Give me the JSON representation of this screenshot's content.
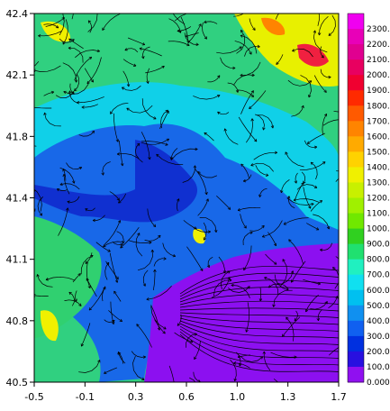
{
  "x_ticks": [
    "-0.5",
    "-0.1",
    "0.3",
    "0.6",
    "1.0",
    "1.3",
    "1.7"
  ],
  "y_ticks": [
    "42.4",
    "42.1",
    "41.8",
    "41.4",
    "41.1",
    "40.8",
    "40.5"
  ],
  "colorbar": {
    "labels": [
      "2300.",
      "2200.",
      "2100.",
      "2000.",
      "1900.",
      "1800.",
      "1700.",
      "1600.",
      "1500.",
      "1400.",
      "1300.",
      "1200.",
      "1100.",
      "1000.",
      "900.0",
      "800.0",
      "700.0",
      "600.0",
      "500.0",
      "400.0",
      "300.0",
      "200.0",
      "100.0",
      "0.000"
    ],
    "colors": [
      "#f000f0",
      "#e800b8",
      "#e00090",
      "#e80060",
      "#f00030",
      "#ff2a00",
      "#ff5a00",
      "#ff8400",
      "#ffaa00",
      "#ffd200",
      "#f0f000",
      "#c8f000",
      "#a0f000",
      "#70e800",
      "#30d020",
      "#20e070",
      "#20f0c0",
      "#10e0f0",
      "#00c0f0",
      "#1090f0",
      "#1060f0",
      "#0030e0",
      "#2810e0",
      "#9010f0"
    ]
  },
  "map_colors": {
    "sea": "#8c10f0",
    "low": "#1040e0",
    "mid": "#10c0f0",
    "high": "#20e070",
    "peak": "#f0f000"
  }
}
